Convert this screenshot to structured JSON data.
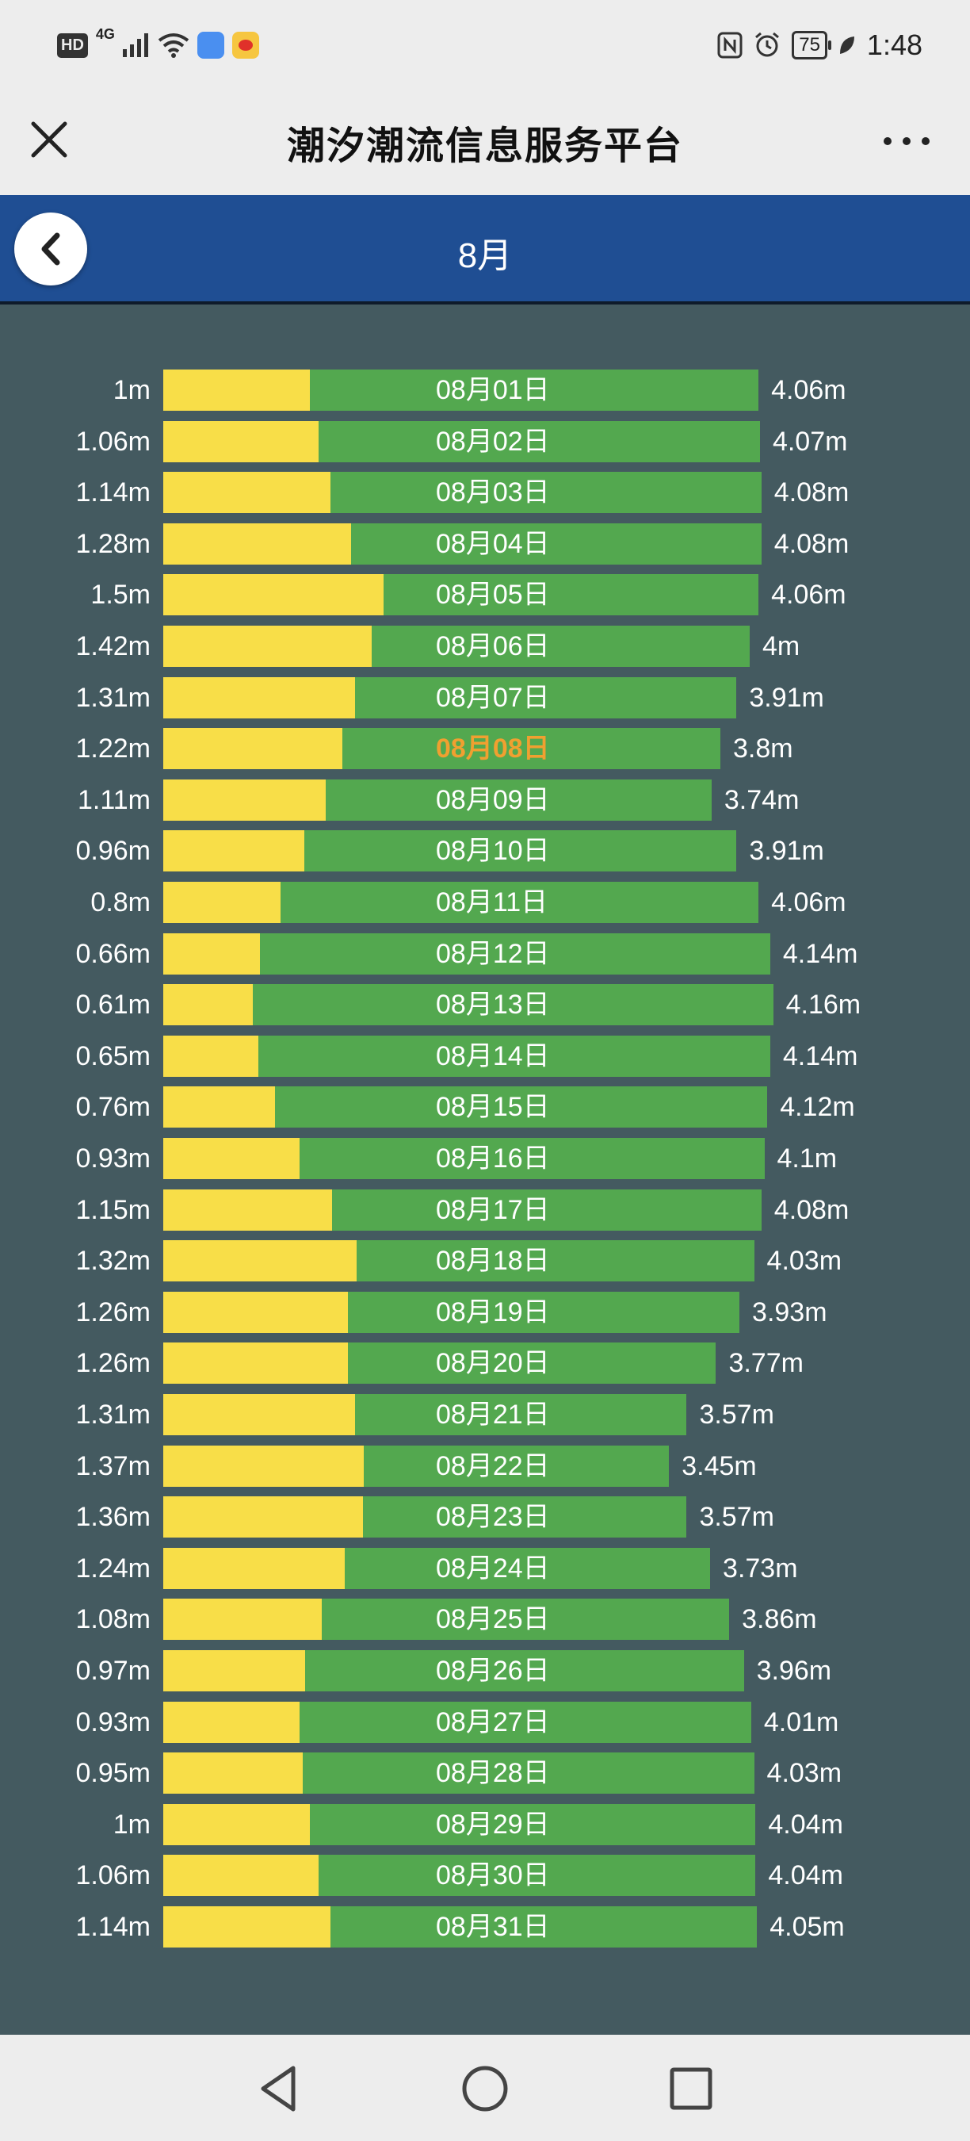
{
  "status_bar": {
    "hd_badge": "HD",
    "network": "4G",
    "icons": [
      "signal-icon",
      "wifi-icon",
      "cloud-app-icon",
      "weibo-app-icon",
      "nfc-icon",
      "alarm-icon",
      "leaf-icon"
    ],
    "battery": "75",
    "time": "1:48"
  },
  "title_bar": {
    "title": "潮汐潮流信息服务平台",
    "close_icon": "close-icon",
    "more_icon": "more-icon"
  },
  "header": {
    "month": "8月",
    "back_icon": "chevron-left-icon"
  },
  "colors": {
    "low_bar": "#f8de48",
    "high_bar": "#53a84f",
    "today_text": "#f0a030",
    "header_bg": "#1f4e93",
    "chart_bg": "#445a60"
  },
  "chart_data": {
    "type": "bar",
    "unit": "m",
    "highlighted": "08月08日",
    "categories": [
      "08月01日",
      "08月02日",
      "08月03日",
      "08月04日",
      "08月05日",
      "08月06日",
      "08月07日",
      "08月08日",
      "08月09日",
      "08月10日",
      "08月11日",
      "08月12日",
      "08月13日",
      "08月14日",
      "08月15日",
      "08月16日",
      "08月17日",
      "08月18日",
      "08月19日",
      "08月20日",
      "08月21日",
      "08月22日",
      "08月23日",
      "08月24日",
      "08月25日",
      "08月26日",
      "08月27日",
      "08月28日",
      "08月29日",
      "08月30日",
      "08月31日"
    ],
    "series": [
      {
        "values": [
          1,
          1.06,
          1.14,
          1.28,
          1.5,
          1.42,
          1.31,
          1.22,
          1.11,
          0.96,
          0.8,
          0.66,
          0.61,
          0.65,
          0.76,
          0.93,
          1.15,
          1.32,
          1.26,
          1.26,
          1.31,
          1.37,
          1.36,
          1.24,
          1.08,
          0.97,
          0.93,
          0.95,
          1,
          1.06,
          1.14
        ]
      },
      {
        "values": [
          4.06,
          4.07,
          4.08,
          4.08,
          4.06,
          4,
          3.91,
          3.8,
          3.74,
          3.91,
          4.06,
          4.14,
          4.16,
          4.14,
          4.12,
          4.1,
          4.08,
          4.03,
          3.93,
          3.77,
          3.57,
          3.45,
          3.57,
          3.73,
          3.86,
          3.96,
          4.01,
          4.03,
          4.04,
          4.04,
          4.05
        ]
      }
    ],
    "low_labels": [
      "1m",
      "1.06m",
      "1.14m",
      "1.28m",
      "1.5m",
      "1.42m",
      "1.31m",
      "1.22m",
      "1.11m",
      "0.96m",
      "0.8m",
      "0.66m",
      "0.61m",
      "0.65m",
      "0.76m",
      "0.93m",
      "1.15m",
      "1.32m",
      "1.26m",
      "1.26m",
      "1.31m",
      "1.37m",
      "1.36m",
      "1.24m",
      "1.08m",
      "0.97m",
      "0.93m",
      "0.95m",
      "1m",
      "1.06m",
      "1.14m"
    ],
    "high_labels": [
      "4.06m",
      "4.07m",
      "4.08m",
      "4.08m",
      "4.06m",
      "4m",
      "3.91m",
      "3.8m",
      "3.74m",
      "3.91m",
      "4.06m",
      "4.14m",
      "4.16m",
      "4.14m",
      "4.12m",
      "4.1m",
      "4.08m",
      "4.03m",
      "3.93m",
      "3.77m",
      "3.57m",
      "3.45m",
      "3.57m",
      "3.73m",
      "3.86m",
      "3.96m",
      "4.01m",
      "4.03m",
      "4.04m",
      "4.04m",
      "4.05m"
    ]
  },
  "nav_bar": {
    "icons": [
      "back-triangle-icon",
      "home-circle-icon",
      "recents-square-icon"
    ]
  }
}
